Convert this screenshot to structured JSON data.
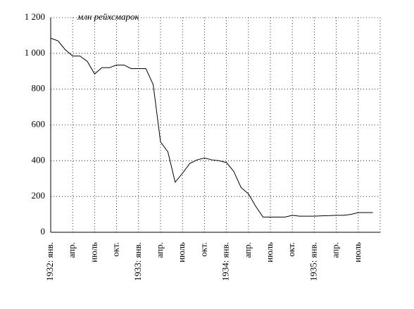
{
  "chart_data": {
    "type": "line",
    "ylabel": "млн рейхсмарок",
    "categories": [
      "1932: янв.",
      null,
      null,
      "апр.",
      null,
      null,
      "июль",
      null,
      null,
      "окт.",
      null,
      null,
      "1933: янв.",
      null,
      null,
      "апр.",
      null,
      null,
      "июль",
      null,
      null,
      "окт.",
      null,
      null,
      "1934: янв.",
      null,
      null,
      "апр.",
      null,
      null,
      "июль",
      null,
      null,
      "окт.",
      null,
      null,
      "1935: янв.",
      null,
      null,
      "апр.",
      null,
      null,
      "июль",
      null,
      null,
      null
    ],
    "series": [
      {
        "color": "#000000",
        "values": [
          1085,
          1070,
          1020,
          985,
          985,
          955,
          885,
          920,
          920,
          935,
          935,
          915,
          915,
          915,
          825,
          505,
          450,
          280,
          330,
          385,
          405,
          415,
          405,
          400,
          390,
          340,
          250,
          215,
          145,
          85,
          85,
          85,
          85,
          95,
          90,
          90,
          90,
          92,
          93,
          95,
          95,
          100,
          110,
          110,
          110,
          null
        ]
      }
    ],
    "ylim": [
      0,
      1200
    ],
    "yticks": [
      0,
      200,
      400,
      600,
      800,
      {
        "value": 1000,
        "label": "1 000"
      },
      {
        "value": 1200,
        "label": "1 200"
      }
    ],
    "grid": true
  }
}
